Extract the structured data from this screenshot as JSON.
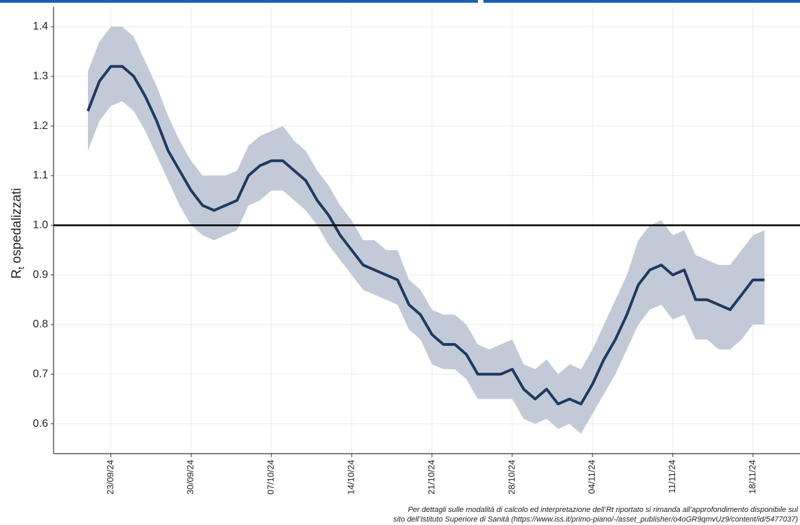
{
  "chart_data": {
    "type": "band-line",
    "ylabel": {
      "symbol": "R",
      "subscript": "t",
      "text": "ospedalizzati"
    },
    "x": [
      "21/09/24",
      "22/09/24",
      "23/09/24",
      "24/09/24",
      "25/09/24",
      "26/09/24",
      "27/09/24",
      "28/09/24",
      "29/09/24",
      "30/09/24",
      "01/10/24",
      "02/10/24",
      "03/10/24",
      "04/10/24",
      "05/10/24",
      "06/10/24",
      "07/10/24",
      "08/10/24",
      "09/10/24",
      "10/10/24",
      "11/10/24",
      "12/10/24",
      "13/10/24",
      "14/10/24",
      "15/10/24",
      "16/10/24",
      "17/10/24",
      "18/10/24",
      "19/10/24",
      "20/10/24",
      "21/10/24",
      "22/10/24",
      "23/10/24",
      "24/10/24",
      "25/10/24",
      "26/10/24",
      "27/10/24",
      "28/10/24",
      "29/10/24",
      "30/10/24",
      "31/10/24",
      "01/11/24",
      "02/11/24",
      "03/11/24",
      "04/11/24",
      "05/11/24",
      "06/11/24",
      "07/11/24",
      "08/11/24",
      "09/11/24",
      "10/11/24",
      "11/11/24",
      "12/11/24",
      "13/11/24",
      "14/11/24",
      "15/11/24",
      "16/11/24",
      "17/11/24",
      "18/11/24",
      "19/11/24"
    ],
    "line": {
      "color": "#1f3a5f",
      "values": [
        1.23,
        1.29,
        1.32,
        1.32,
        1.3,
        1.26,
        1.21,
        1.15,
        1.11,
        1.07,
        1.04,
        1.03,
        1.04,
        1.05,
        1.1,
        1.12,
        1.13,
        1.13,
        1.11,
        1.09,
        1.05,
        1.02,
        0.98,
        0.95,
        0.92,
        0.91,
        0.9,
        0.89,
        0.84,
        0.82,
        0.78,
        0.76,
        0.76,
        0.74,
        0.7,
        0.7,
        0.7,
        0.71,
        0.67,
        0.65,
        0.67,
        0.64,
        0.65,
        0.64,
        0.68,
        0.73,
        0.77,
        0.82,
        0.88,
        0.91,
        0.92,
        0.9,
        0.91,
        0.85,
        0.85,
        0.84,
        0.83,
        0.86,
        0.89,
        0.89
      ]
    },
    "band": {
      "color": "#c2cad7",
      "upper": [
        1.31,
        1.37,
        1.4,
        1.4,
        1.38,
        1.33,
        1.28,
        1.22,
        1.17,
        1.13,
        1.1,
        1.1,
        1.1,
        1.11,
        1.16,
        1.18,
        1.19,
        1.2,
        1.17,
        1.15,
        1.11,
        1.08,
        1.04,
        1.01,
        0.97,
        0.97,
        0.95,
        0.95,
        0.89,
        0.87,
        0.83,
        0.82,
        0.82,
        0.8,
        0.76,
        0.75,
        0.76,
        0.77,
        0.72,
        0.71,
        0.73,
        0.7,
        0.72,
        0.71,
        0.75,
        0.8,
        0.85,
        0.9,
        0.97,
        1.0,
        1.01,
        0.98,
        0.99,
        0.94,
        0.93,
        0.92,
        0.92,
        0.95,
        0.98,
        0.99
      ],
      "lower": [
        1.15,
        1.21,
        1.24,
        1.25,
        1.23,
        1.19,
        1.14,
        1.09,
        1.04,
        1.0,
        0.98,
        0.97,
        0.98,
        0.99,
        1.04,
        1.05,
        1.07,
        1.07,
        1.05,
        1.03,
        1.0,
        0.96,
        0.93,
        0.9,
        0.87,
        0.86,
        0.85,
        0.84,
        0.79,
        0.77,
        0.72,
        0.71,
        0.71,
        0.69,
        0.65,
        0.65,
        0.65,
        0.65,
        0.61,
        0.6,
        0.61,
        0.59,
        0.6,
        0.58,
        0.62,
        0.66,
        0.7,
        0.75,
        0.8,
        0.83,
        0.84,
        0.81,
        0.82,
        0.77,
        0.77,
        0.75,
        0.75,
        0.77,
        0.8,
        0.8
      ]
    },
    "hline": 1,
    "ylim": [
      0.54,
      1.44
    ],
    "yticks": [
      0.6,
      0.7,
      0.8,
      0.9,
      {
        "value": 1,
        "label": "1.0"
      },
      1.1,
      1.2,
      1.3,
      1.4
    ],
    "xticks": [
      "23/09/24",
      "30/09/24",
      "07/10/24",
      "14/10/24",
      "21/10/24",
      "28/10/24",
      "04/11/24",
      "11/11/24",
      "18/11/24"
    ],
    "grid": true,
    "footnote": [
      "Per dettagli sulle modalità di calcolo ed interpretazione dell’Rt riportato si rimanda all’approfondimento disponibile sul",
      "sito dell’Istituto Superiore di Sanità (https://www.iss.it/primo-piano/-/asset_publisher/o4oGR9qmvUz9/content/id/5477037)"
    ]
  }
}
